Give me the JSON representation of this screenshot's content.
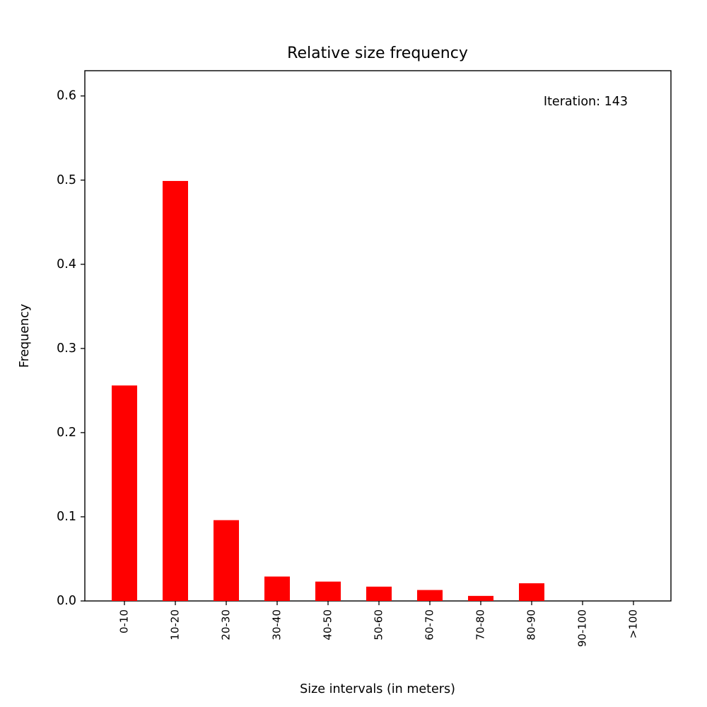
{
  "chart_data": {
    "type": "bar",
    "title": "Relative size frequency",
    "xlabel": "Size intervals (in meters)",
    "ylabel": "Frequency",
    "annotation": "Iteration: 143",
    "categories": [
      "0-10",
      "10-20",
      "20-30",
      "30-40",
      "40-50",
      "50-60",
      "60-70",
      "70-80",
      "80-90",
      "90-100",
      ">100"
    ],
    "values": [
      0.256,
      0.499,
      0.096,
      0.029,
      0.023,
      0.017,
      0.013,
      0.006,
      0.021,
      0.0,
      0.0
    ],
    "ylim": [
      0,
      0.63
    ],
    "yticks": [
      0.0,
      0.1,
      0.2,
      0.3,
      0.4,
      0.5,
      0.6
    ],
    "ytick_labels": [
      "0.0",
      "0.1",
      "0.2",
      "0.3",
      "0.4",
      "0.5",
      "0.6"
    ],
    "grid": false,
    "legend": "none",
    "bar_color": "#ff0000"
  }
}
